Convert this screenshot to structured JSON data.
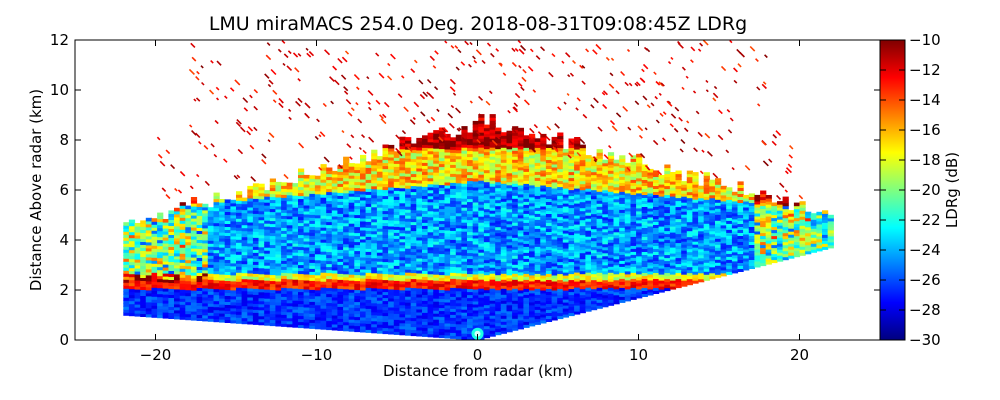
{
  "chart_data": {
    "type": "heatmap",
    "title": "LMU miraMACS 254.0 Deg. 2018-08-31T09:08:45Z  LDRg",
    "xlabel": "Distance from radar (km)",
    "ylabel": "Distance Above radar  (km)",
    "xlim": [
      -25,
      25
    ],
    "ylim": [
      0,
      12
    ],
    "xticks": [
      -20,
      -10,
      0,
      10,
      20
    ],
    "xtick_labels": [
      "−20",
      "−10",
      "0",
      "10",
      "20"
    ],
    "yticks": [
      0,
      2,
      4,
      6,
      8,
      10,
      12
    ],
    "ytick_labels": [
      "0",
      "2",
      "4",
      "6",
      "8",
      "10",
      "12"
    ],
    "colorbar": {
      "label": "LDRg (dB)",
      "range": [
        -30,
        -10
      ],
      "colormap": "jet",
      "ticks": [
        -30,
        -28,
        -26,
        -24,
        -22,
        -20,
        -18,
        -16,
        -14,
        -12,
        -10
      ],
      "tick_labels": [
        "−30",
        "−28",
        "−26",
        "−24",
        "−22",
        "−20",
        "−18",
        "−16",
        "−14",
        "−12",
        "−10"
      ]
    },
    "scan": {
      "azimuth_deg": 254.0,
      "left_edge_x_km": -22,
      "right_edge_x_km": 22,
      "left_edge_y_km": [
        1.0,
        4.5
      ],
      "right_edge_y_km": [
        3.7,
        5.0
      ]
    },
    "layers": [
      {
        "name": "ground-clutter-base",
        "y_km": [
          0.0,
          2.0
        ],
        "ldr_db": -28
      },
      {
        "name": "melting-layer",
        "y_km": [
          2.0,
          2.3
        ],
        "ldr_db": -12
      },
      {
        "name": "ice-cloud-body",
        "y_km": [
          2.3,
          6.5
        ],
        "ldr_db": -26
      },
      {
        "name": "cloud-top-transition",
        "y_km": [
          6.5,
          8.5
        ],
        "ldr_db": -18
      },
      {
        "name": "noisy-speckle",
        "y_km": [
          8.5,
          12.0
        ],
        "ldr_db": -10
      }
    ]
  }
}
